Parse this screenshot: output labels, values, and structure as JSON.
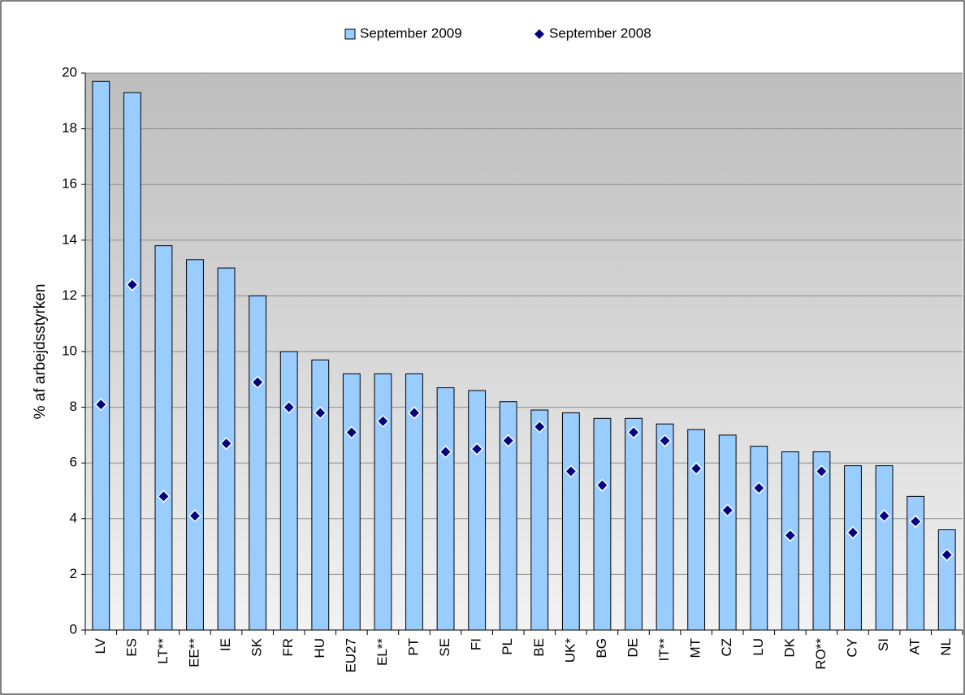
{
  "chart_data": {
    "type": "bar",
    "y_label": "% af arbejdsstyrken",
    "categories": [
      "LV",
      "ES",
      "LT**",
      "EE**",
      "IE",
      "SK",
      "FR",
      "HU",
      "EU27",
      "EL**",
      "PT",
      "SE",
      "FI",
      "PL",
      "BE",
      "UK*",
      "BG",
      "DE",
      "IT**",
      "MT",
      "CZ",
      "LU",
      "DK",
      "RO**",
      "CY",
      "SI",
      "AT",
      "NL"
    ],
    "series": [
      {
        "name": "September 2009",
        "type": "bar",
        "color": "#99ccff",
        "values": [
          19.7,
          19.3,
          13.8,
          13.3,
          13.0,
          12.0,
          10.0,
          9.7,
          9.2,
          9.2,
          9.2,
          8.7,
          8.6,
          8.2,
          7.9,
          7.8,
          7.6,
          7.6,
          7.4,
          7.2,
          7.0,
          6.6,
          6.4,
          6.4,
          5.9,
          5.9,
          4.8,
          3.6
        ]
      },
      {
        "name": "September 2008",
        "type": "scatter",
        "marker": "diamond",
        "color": "#000080",
        "values": [
          8.1,
          12.4,
          4.8,
          4.1,
          6.7,
          8.9,
          8.0,
          7.8,
          7.1,
          7.5,
          7.8,
          6.4,
          6.5,
          6.8,
          7.3,
          5.7,
          5.2,
          7.1,
          6.8,
          5.8,
          4.3,
          5.1,
          3.4,
          5.7,
          3.5,
          4.1,
          3.9,
          2.7
        ]
      }
    ],
    "ylim": [
      0,
      20
    ],
    "yticks": [
      0,
      2,
      4,
      6,
      8,
      10,
      12,
      14,
      16,
      18,
      20
    ],
    "grid": true,
    "legend": "top"
  }
}
